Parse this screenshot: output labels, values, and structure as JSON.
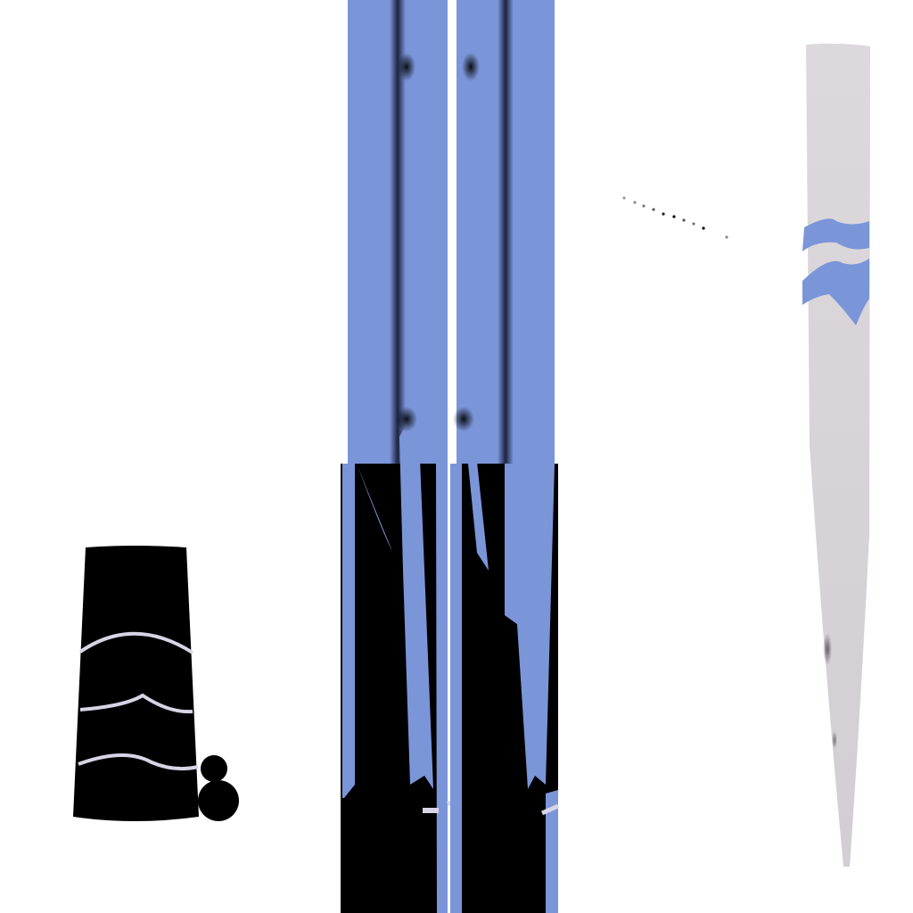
{
  "canvas": {
    "background": "#ffffff",
    "colors": {
      "blue": "#7b95d9",
      "black": "#000000",
      "light_gray": "#d8d4d8",
      "stripe_light": "#d8d4e6"
    }
  },
  "pieces": [
    {
      "name": "black-sleeve-piece",
      "kind": "cuff",
      "stripes": 3
    },
    {
      "name": "black-button-pair",
      "kind": "buttons",
      "count": 2
    },
    {
      "name": "left-blue-leg-panel",
      "kind": "leg",
      "stripes": 0
    },
    {
      "name": "right-blue-leg-panel",
      "kind": "leg",
      "stripes": 0
    },
    {
      "name": "dotted-seam-line",
      "kind": "stitch",
      "count": 10
    },
    {
      "name": "gray-tapered-tail",
      "kind": "tail",
      "stripes": 2
    }
  ]
}
